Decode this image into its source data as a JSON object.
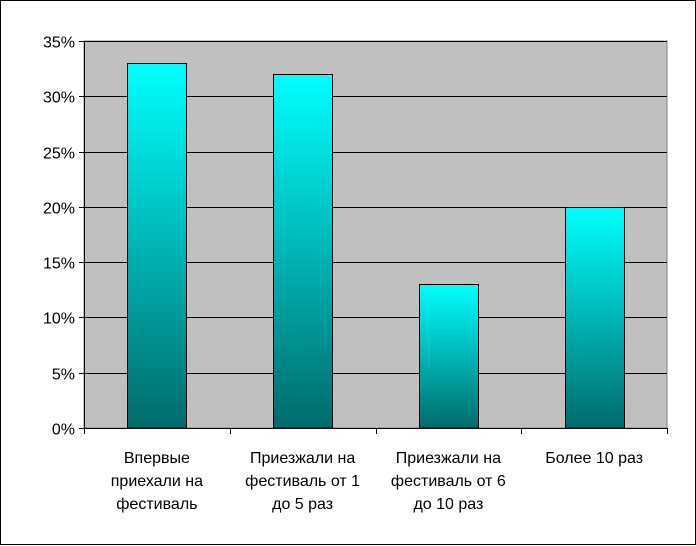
{
  "chart_data": {
    "type": "bar",
    "title": "",
    "xlabel": "",
    "ylabel": "",
    "categories": [
      [
        "Впервые",
        "приехали на",
        "фестиваль"
      ],
      [
        "Приезжали на",
        "фестиваль от 1",
        "до 5 раз"
      ],
      [
        "Приезжали на",
        "фестиваль от 6",
        "до 10 раз"
      ],
      [
        "Более 10 раз"
      ]
    ],
    "values": [
      33,
      32,
      13,
      20
    ],
    "ylim": [
      0,
      35
    ],
    "y_ticks": [
      0,
      5,
      10,
      15,
      20,
      25,
      30,
      35
    ],
    "y_tick_labels": [
      "0%",
      "5%",
      "10%",
      "15%",
      "20%",
      "25%",
      "30%",
      "35%"
    ],
    "grid": true,
    "legend": "none",
    "colors": {
      "plot_background": "#c0c0c0",
      "bar_top": "#00ffff",
      "bar_bottom": "#006b6b",
      "gridline": "#000000"
    }
  }
}
